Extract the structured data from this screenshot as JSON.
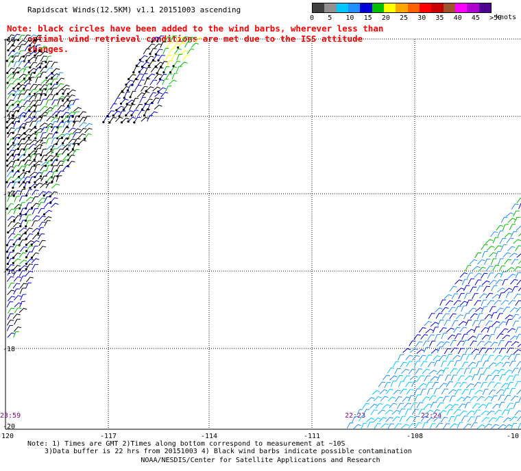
{
  "title": "Rapidscat Winds(12.5KM) v1.1 20151003 ascending",
  "note": {
    "line1": "Note: black circles have been added to the wind barbs, wherever less than",
    "line2": "optimal wind retrieval conditions are met due to the ISS attitude changes."
  },
  "legend": {
    "ticks": [
      "0",
      "5",
      "10",
      "15",
      "20",
      "25",
      "30",
      "35",
      "40",
      "45",
      ">50"
    ],
    "unit": "knots",
    "colors": [
      "#404040",
      "#909090",
      "#00c8ff",
      "#1e90ff",
      "#0000dd",
      "#00c000",
      "#ffff00",
      "#ffa500",
      "#ff6000",
      "#ff0000",
      "#c80000",
      "#a0522d",
      "#ff00ff",
      "#b000d0",
      "#500090"
    ]
  },
  "map": {
    "lon_labels": [
      "-120",
      "-117",
      "-114",
      "-111",
      "-108",
      "-10"
    ],
    "lat_labels": [
      "-10",
      "-12",
      "-14",
      "-16",
      "-18",
      "-20"
    ],
    "time_labels": [
      "23:59",
      "22:23",
      "22:24"
    ],
    "colors": {
      "grid": "#000000",
      "black_barb": "#000000",
      "green": "#00c000",
      "blue": "#0000dd",
      "mid_blue": "#1e90ff",
      "cyan": "#00c8ff",
      "yellow": "#ffff00",
      "time": "#800080"
    }
  },
  "footnotes": {
    "line1": "Note: 1) Times are GMT 2)Times along bottom correspond to measurement at ~10S",
    "line2": "3)Data buffer is 22 hrs from 20151003 4) Black wind barbs indicate possible contamination"
  },
  "credit": "NOAA/NESDIS/Center for Satellite Applications and Research"
}
